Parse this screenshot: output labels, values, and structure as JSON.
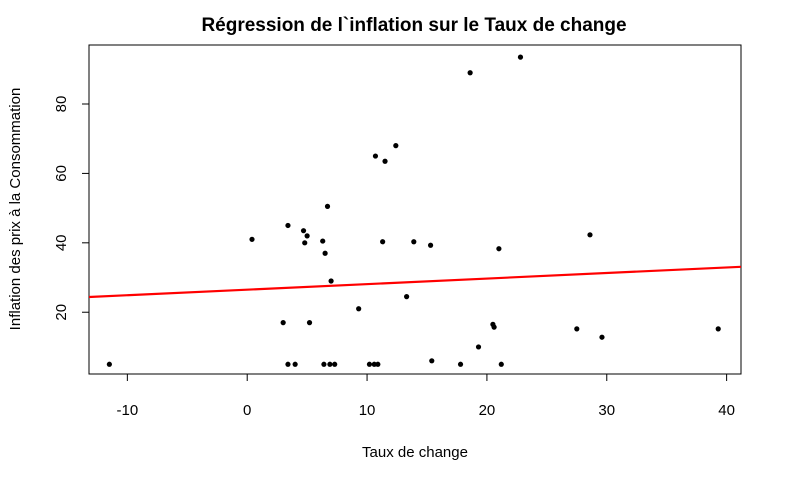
{
  "chart_data": {
    "type": "scatter",
    "title": "Régression de l`inflation sur le Taux de change",
    "xlabel": "Taux de change",
    "ylabel": "Inflation des prix à la Consommation",
    "xlim": [
      -13.2,
      41.2
    ],
    "ylim": [
      2.2,
      97
    ],
    "xticks": [
      -10,
      0,
      10,
      20,
      30,
      40
    ],
    "yticks": [
      20,
      40,
      60,
      80
    ],
    "grid": false,
    "points": [
      {
        "x": -11.5,
        "y": 5
      },
      {
        "x": 0.4,
        "y": 41
      },
      {
        "x": 3.0,
        "y": 17
      },
      {
        "x": 3.4,
        "y": 45
      },
      {
        "x": 3.4,
        "y": 5
      },
      {
        "x": 4.0,
        "y": 5
      },
      {
        "x": 4.7,
        "y": 43.5
      },
      {
        "x": 4.8,
        "y": 40
      },
      {
        "x": 5.0,
        "y": 42
      },
      {
        "x": 5.2,
        "y": 17
      },
      {
        "x": 6.3,
        "y": 40.5
      },
      {
        "x": 6.4,
        "y": 5
      },
      {
        "x": 6.5,
        "y": 37
      },
      {
        "x": 6.7,
        "y": 50.5
      },
      {
        "x": 6.9,
        "y": 5
      },
      {
        "x": 7.0,
        "y": 29
      },
      {
        "x": 7.3,
        "y": 5
      },
      {
        "x": 9.3,
        "y": 21
      },
      {
        "x": 10.2,
        "y": 5
      },
      {
        "x": 10.6,
        "y": 5
      },
      {
        "x": 10.7,
        "y": 65
      },
      {
        "x": 10.9,
        "y": 5
      },
      {
        "x": 11.3,
        "y": 40.3
      },
      {
        "x": 11.5,
        "y": 63.5
      },
      {
        "x": 12.4,
        "y": 68
      },
      {
        "x": 13.3,
        "y": 24.5
      },
      {
        "x": 13.9,
        "y": 40.3
      },
      {
        "x": 15.3,
        "y": 39.3
      },
      {
        "x": 15.4,
        "y": 6
      },
      {
        "x": 17.8,
        "y": 5
      },
      {
        "x": 18.6,
        "y": 89
      },
      {
        "x": 19.3,
        "y": 10
      },
      {
        "x": 20.5,
        "y": 16.5
      },
      {
        "x": 20.6,
        "y": 15.7
      },
      {
        "x": 21.0,
        "y": 38.3
      },
      {
        "x": 21.2,
        "y": 5
      },
      {
        "x": 22.8,
        "y": 93.5
      },
      {
        "x": 27.5,
        "y": 15.2
      },
      {
        "x": 28.6,
        "y": 42.3
      },
      {
        "x": 29.6,
        "y": 12.8
      },
      {
        "x": 39.3,
        "y": 15.2
      }
    ],
    "regression_line": {
      "intercept": 26.5,
      "slope": 0.16,
      "color": "#ff0000"
    },
    "point_color": "#000000"
  }
}
